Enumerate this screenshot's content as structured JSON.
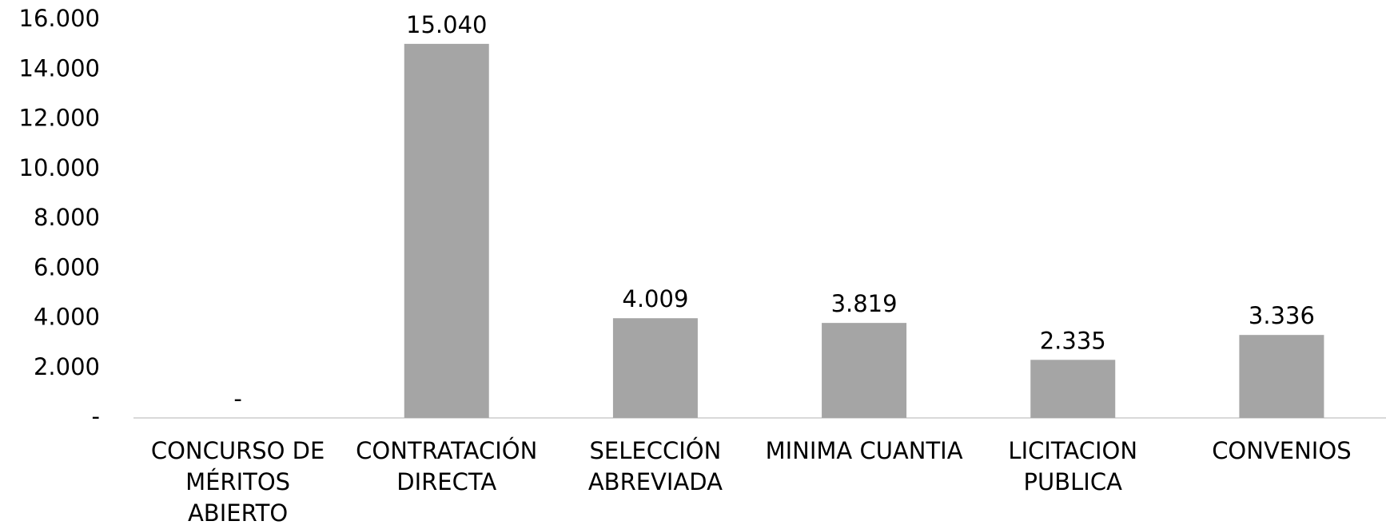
{
  "chart_data": {
    "type": "bar",
    "categories": [
      "CONCURSO DE MÉRITOS ABIERTO",
      "CONTRATACIÓN DIRECTA",
      "SELECCIÓN ABREVIADA",
      "MINIMA CUANTIA",
      "LICITACION PUBLICA",
      "CONVENIOS"
    ],
    "values": [
      0,
      15040,
      4009,
      3819,
      2335,
      3336
    ],
    "value_labels": [
      "-",
      "15.040",
      "4.009",
      "3.819",
      "2.335",
      "3.336"
    ],
    "color": "#a5a5a5",
    "ylim": [
      0,
      16000
    ],
    "yticks": [
      {
        "value": 0,
        "label": "-"
      },
      {
        "value": 2000,
        "label": "2.000"
      },
      {
        "value": 4000,
        "label": "4.000"
      },
      {
        "value": 6000,
        "label": "6.000"
      },
      {
        "value": 8000,
        "label": "8.000"
      },
      {
        "value": 10000,
        "label": "10.000"
      },
      {
        "value": 12000,
        "label": "12.000"
      },
      {
        "value": 14000,
        "label": "14.000"
      },
      {
        "value": 16000,
        "label": "16.000"
      }
    ],
    "grid": false
  }
}
